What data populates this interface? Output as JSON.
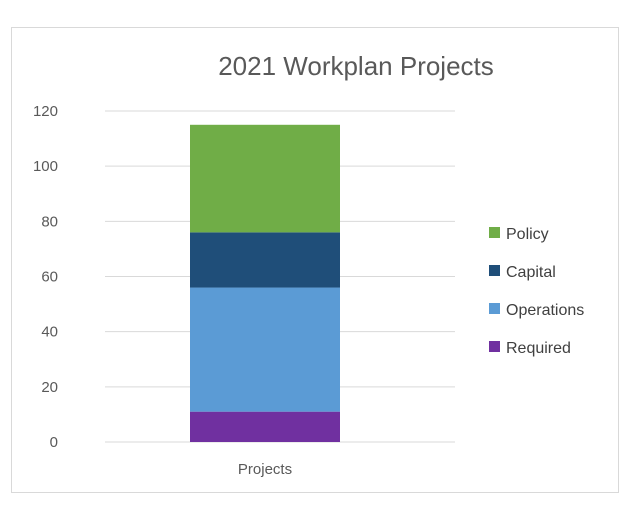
{
  "chart_data": {
    "type": "bar",
    "stacked": true,
    "title": "2021 Workplan Projects",
    "categories": [
      "Projects"
    ],
    "ylim": [
      0,
      120
    ],
    "yticks": [
      0,
      20,
      40,
      60,
      80,
      100,
      120
    ],
    "grid": true,
    "legend_position": "right",
    "series": [
      {
        "name": "Required",
        "values": [
          11
        ],
        "color": "#7030a0"
      },
      {
        "name": "Operations",
        "values": [
          45
        ],
        "color": "#5b9bd5"
      },
      {
        "name": "Capital",
        "values": [
          20
        ],
        "color": "#1f4e79"
      },
      {
        "name": "Policy",
        "values": [
          39
        ],
        "color": "#70ad47"
      }
    ],
    "legend_order": [
      "Policy",
      "Capital",
      "Operations",
      "Required"
    ]
  }
}
